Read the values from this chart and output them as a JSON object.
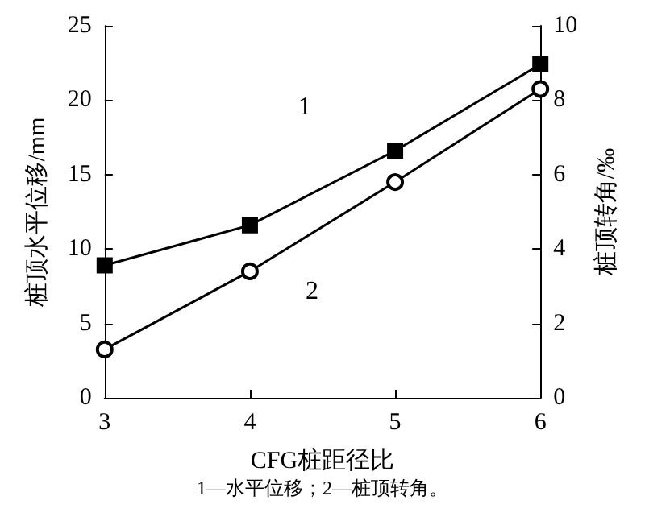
{
  "chart_data": {
    "type": "line",
    "xlabel": "CFG桩距径比",
    "ylabel": "桩顶水平位移/mm",
    "y2label": "桩顶转角/‰",
    "annotations": [
      "1—水平位移；2—桩顶转角。"
    ],
    "x": [
      3,
      4,
      5,
      6
    ],
    "xlim": [
      3,
      6
    ],
    "xticks": [
      3,
      4,
      5,
      6
    ],
    "ylim": [
      0,
      25
    ],
    "yticks": [
      0,
      5,
      10,
      15,
      20,
      25
    ],
    "y2lim": [
      0,
      10
    ],
    "y2ticks": [
      0,
      2,
      4,
      6,
      8,
      10
    ],
    "series": [
      {
        "name": "1",
        "color": "#000000",
        "marker": "square",
        "values": [
          8.9,
          11.6,
          16.6,
          22.4
        ]
      },
      {
        "name": "2",
        "color": "#000000",
        "marker": "circle",
        "axis": "y2",
        "values": [
          1.3,
          3.4,
          5.8,
          8.3
        ]
      }
    ],
    "grid": false,
    "legend": false,
    "line_style": "solid"
  }
}
